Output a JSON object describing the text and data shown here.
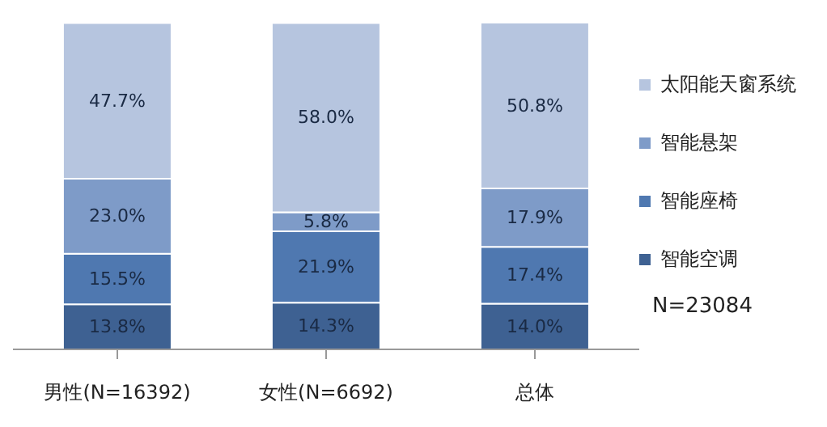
{
  "chart_data": {
    "type": "bar",
    "stacked": true,
    "categories": [
      "男性(N=16392)",
      "女性(N=6692)",
      "总体"
    ],
    "series": [
      {
        "name": "智能空调",
        "color": "#3e6192",
        "values": [
          13.8,
          14.3,
          14.0
        ],
        "value_labels": [
          "13.8%",
          "14.3%",
          "14.0%"
        ]
      },
      {
        "name": "智能座椅",
        "color": "#4f78b0",
        "values": [
          15.5,
          21.9,
          17.4
        ],
        "value_labels": [
          "15.5%",
          "21.9%",
          "17.4%"
        ]
      },
      {
        "name": "智能悬架",
        "color": "#7e9bc8",
        "values": [
          23.0,
          5.8,
          17.9
        ],
        "value_labels": [
          "23.0%",
          "5.8%",
          "17.9%"
        ]
      },
      {
        "name": "太阳能天窗系统",
        "color": "#b6c5df",
        "values": [
          47.7,
          58.0,
          50.8
        ],
        "value_labels": [
          "47.7%",
          "58.0%",
          "50.8%"
        ]
      }
    ],
    "legend": "right",
    "annotations": [
      "N=23084"
    ]
  }
}
